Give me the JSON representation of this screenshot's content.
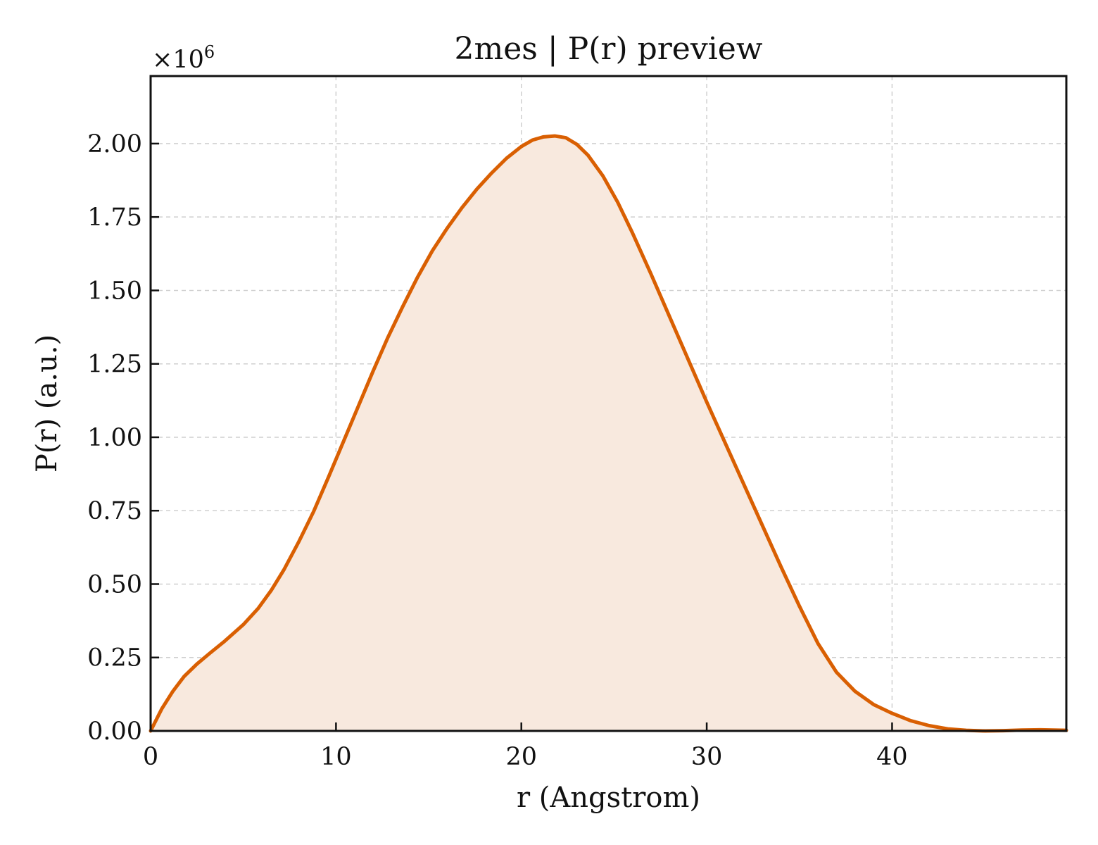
{
  "chart_data": {
    "type": "area",
    "title": "2mes | P(r) preview",
    "xlabel": "r (Angstrom)",
    "ylabel": "P(r) (a.u.)",
    "y_offset_label": "×10",
    "y_offset_exponent": "6",
    "xlim": [
      0,
      49.4
    ],
    "ylim": [
      0,
      2.23
    ],
    "y_scale_factor": 1000000,
    "x_ticks": [
      0,
      10,
      20,
      30,
      40
    ],
    "x_tick_labels": [
      "0",
      "10",
      "20",
      "30",
      "40"
    ],
    "y_ticks": [
      0,
      0.25,
      0.5,
      0.75,
      1.0,
      1.25,
      1.5,
      1.75,
      2.0
    ],
    "y_tick_labels": [
      "0.00",
      "0.25",
      "0.50",
      "0.75",
      "1.00",
      "1.25",
      "1.50",
      "1.75",
      "2.00"
    ],
    "grid": true,
    "line_color": "#d95f02",
    "fill_color": "#f8e9de",
    "series": [
      {
        "x": [
          0,
          0.6,
          1.2,
          1.8,
          2.5,
          3.2,
          4.0,
          5.0,
          5.8,
          6.5,
          7.2,
          8.0,
          8.8,
          9.6,
          10.4,
          11.2,
          12.0,
          12.8,
          13.6,
          14.4,
          15.2,
          16.0,
          16.8,
          17.6,
          18.4,
          19.2,
          20.0,
          20.6,
          21.2,
          21.8,
          22.4,
          23.0,
          23.6,
          24.4,
          25.2,
          26.0,
          27.0,
          28.0,
          29.0,
          30.0,
          31.0,
          32.0,
          33.0,
          34.0,
          35.0,
          36.0,
          37.0,
          38.0,
          39.0,
          40.0,
          41.0,
          42.0,
          43.0,
          44.0,
          45.0,
          46.0,
          47.0,
          48.0,
          49.4
        ],
        "y": [
          0.0,
          0.075,
          0.135,
          0.185,
          0.228,
          0.265,
          0.306,
          0.362,
          0.417,
          0.478,
          0.55,
          0.645,
          0.748,
          0.865,
          0.985,
          1.105,
          1.225,
          1.34,
          1.445,
          1.545,
          1.635,
          1.712,
          1.782,
          1.845,
          1.9,
          1.95,
          1.99,
          2.012,
          2.023,
          2.026,
          2.02,
          1.997,
          1.96,
          1.89,
          1.8,
          1.695,
          1.555,
          1.41,
          1.265,
          1.12,
          0.98,
          0.84,
          0.7,
          0.56,
          0.425,
          0.298,
          0.2,
          0.135,
          0.09,
          0.06,
          0.035,
          0.018,
          0.007,
          0.002,
          0.0,
          0.001,
          0.003,
          0.004,
          0.002
        ]
      }
    ]
  }
}
